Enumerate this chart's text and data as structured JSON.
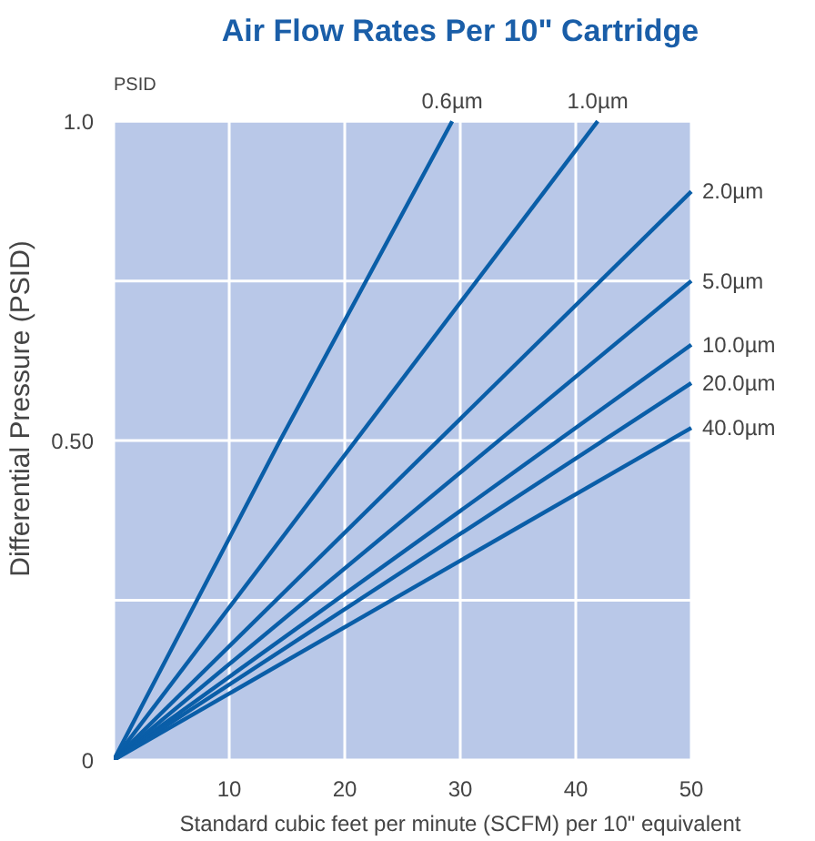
{
  "chart_data": {
    "type": "line",
    "title": "Air Flow Rates Per 10\" Cartridge",
    "xlabel": "Standard cubic feet per minute (SCFM) per 10\" equivalent",
    "ylabel": "Differential Pressure (PSID)",
    "annotations": [
      "PSID"
    ],
    "xlim": [
      0,
      50
    ],
    "ylim": [
      0,
      1.0
    ],
    "xticks": [
      {
        "value": 0,
        "label": null
      },
      10,
      20,
      30,
      40,
      50
    ],
    "yticks": [
      0,
      {
        "value": 0.25,
        "label": null
      },
      {
        "value": 0.5,
        "label": "0.50"
      },
      {
        "value": 0.75,
        "label": null
      },
      {
        "value": 1.0,
        "label": "1.0"
      }
    ],
    "grid": true,
    "series": [
      {
        "name": "0.6µm",
        "color": "#0a5ea8",
        "x": [
          0,
          14.4,
          29.3
        ],
        "values": [
          0,
          0.5,
          1.0
        ]
      },
      {
        "name": "1.0µm",
        "color": "#0a5ea8",
        "x": [
          0,
          41.9
        ],
        "values": [
          0,
          1.0
        ]
      },
      {
        "name": "2.0µm",
        "color": "#0a5ea8",
        "x": [
          0,
          50
        ],
        "values": [
          0,
          0.89
        ]
      },
      {
        "name": "5.0µm",
        "color": "#0a5ea8",
        "x": [
          0,
          50
        ],
        "values": [
          0,
          0.75
        ]
      },
      {
        "name": "10.0µm",
        "color": "#0a5ea8",
        "x": [
          0,
          50
        ],
        "values": [
          0,
          0.65
        ]
      },
      {
        "name": "20.0µm",
        "color": "#0a5ea8",
        "x": [
          0,
          50
        ],
        "values": [
          0,
          0.59
        ]
      },
      {
        "name": "40.0µm",
        "color": "#0a5ea8",
        "x": [
          0,
          50
        ],
        "values": [
          0,
          0.52
        ]
      }
    ]
  }
}
